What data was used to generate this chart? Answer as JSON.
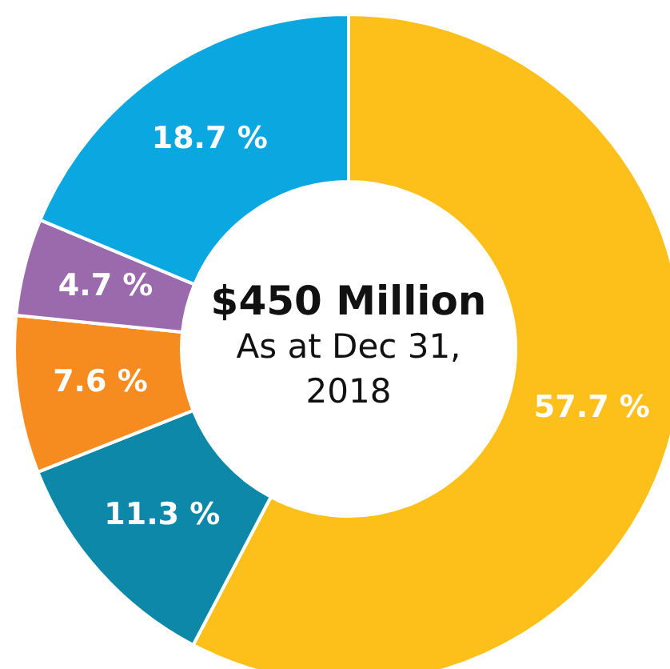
{
  "chart_data": {
    "type": "donut",
    "title": "$450 Million",
    "subtitle": "As at Dec 31, 2018",
    "categories": [
      null,
      null,
      null,
      null,
      null
    ],
    "values": [
      57.7,
      11.3,
      7.6,
      4.7,
      18.7
    ],
    "colors": [
      "#fdc01a",
      "#0e88a8",
      "#f68b1f",
      "#9a6aad",
      "#0aa7e0"
    ],
    "value_labels": [
      "57.7 %",
      "11.3 %",
      "7.6 %",
      "4.7 %",
      "18.7 %"
    ],
    "legend": false
  }
}
